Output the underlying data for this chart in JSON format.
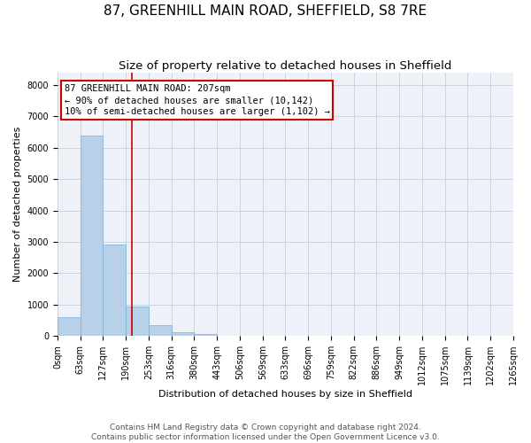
{
  "title": "87, GREENHILL MAIN ROAD, SHEFFIELD, S8 7RE",
  "subtitle": "Size of property relative to detached houses in Sheffield",
  "xlabel": "Distribution of detached houses by size in Sheffield",
  "ylabel": "Number of detached properties",
  "bar_color": "#b8d0e8",
  "bar_edge_color": "#7aafd4",
  "grid_color": "#c8d4e4",
  "background_color": "#eef2f8",
  "annotation_box_color": "#cc0000",
  "vline_color": "#cc0000",
  "ylim": [
    0,
    8400
  ],
  "yticks": [
    0,
    1000,
    2000,
    3000,
    4000,
    5000,
    6000,
    7000,
    8000
  ],
  "bin_labels": [
    "0sqm",
    "63sqm",
    "127sqm",
    "190sqm",
    "253sqm",
    "316sqm",
    "380sqm",
    "443sqm",
    "506sqm",
    "569sqm",
    "633sqm",
    "696sqm",
    "759sqm",
    "822sqm",
    "886sqm",
    "949sqm",
    "1012sqm",
    "1075sqm",
    "1139sqm",
    "1202sqm",
    "1265sqm"
  ],
  "bar_heights": [
    600,
    6400,
    2900,
    950,
    350,
    130,
    70,
    0,
    0,
    0,
    0,
    0,
    0,
    0,
    0,
    0,
    0,
    0,
    0,
    0
  ],
  "vline_bin_index": 3.27,
  "annotation_text": "87 GREENHILL MAIN ROAD: 207sqm\n← 90% of detached houses are smaller (10,142)\n10% of semi-detached houses are larger (1,102) →",
  "footer_line1": "Contains HM Land Registry data © Crown copyright and database right 2024.",
  "footer_line2": "Contains public sector information licensed under the Open Government Licence v3.0.",
  "title_fontsize": 11,
  "subtitle_fontsize": 9.5,
  "axis_label_fontsize": 8,
  "tick_fontsize": 7,
  "annotation_fontsize": 7.5,
  "footer_fontsize": 6.5
}
